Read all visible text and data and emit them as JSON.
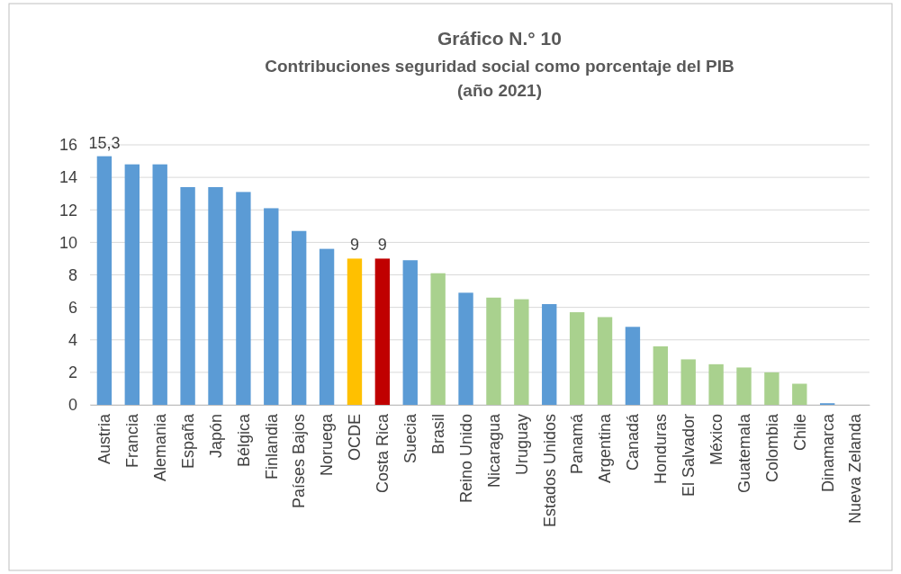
{
  "chart_data": {
    "type": "bar",
    "title": "Gráfico N.° 10",
    "subtitle": "Contribuciones seguridad social como porcentaje del PIB\n(año 2021)",
    "categories": [
      "Austria",
      "Francia",
      "Alemania",
      "España",
      "Japón",
      "Bélgica",
      "Finlandia",
      "Países Bajos",
      "Noruega",
      "OCDE",
      "Costa Rica",
      "Suecia",
      "Brasil",
      "Reino Unido",
      "Nicaragua",
      "Uruguay",
      "Estados Unidos",
      "Panamá",
      "Argentina",
      "Canadá",
      "Honduras",
      "El Salvador",
      "México",
      "Guatemala",
      "Colombia",
      "Chile",
      "Dinamarca",
      "Nueva Zelanda"
    ],
    "values": [
      15.3,
      14.8,
      14.8,
      13.4,
      13.4,
      13.1,
      12.1,
      10.7,
      9.6,
      9,
      9,
      8.9,
      8.1,
      6.9,
      6.6,
      6.5,
      6.2,
      5.7,
      5.4,
      4.8,
      3.6,
      2.8,
      2.5,
      2.3,
      2.0,
      1.3,
      0.1,
      0
    ],
    "colors": [
      "#5b9bd5",
      "#5b9bd5",
      "#5b9bd5",
      "#5b9bd5",
      "#5b9bd5",
      "#5b9bd5",
      "#5b9bd5",
      "#5b9bd5",
      "#5b9bd5",
      "#ffc000",
      "#c00000",
      "#5b9bd5",
      "#a9d18e",
      "#5b9bd5",
      "#a9d18e",
      "#a9d18e",
      "#5b9bd5",
      "#a9d18e",
      "#a9d18e",
      "#5b9bd5",
      "#a9d18e",
      "#a9d18e",
      "#a9d18e",
      "#a9d18e",
      "#a9d18e",
      "#a9d18e",
      "#5b9bd5",
      "#5b9bd5"
    ],
    "value_labels": [
      "15,3",
      null,
      null,
      null,
      null,
      null,
      null,
      null,
      null,
      "9",
      "9",
      null,
      null,
      null,
      null,
      null,
      null,
      null,
      null,
      null,
      null,
      null,
      null,
      null,
      null,
      null,
      null,
      null
    ],
    "ylim": [
      0,
      16
    ],
    "yticks": [
      0,
      2,
      4,
      6,
      8,
      10,
      12,
      14,
      16
    ],
    "grid": "y"
  }
}
